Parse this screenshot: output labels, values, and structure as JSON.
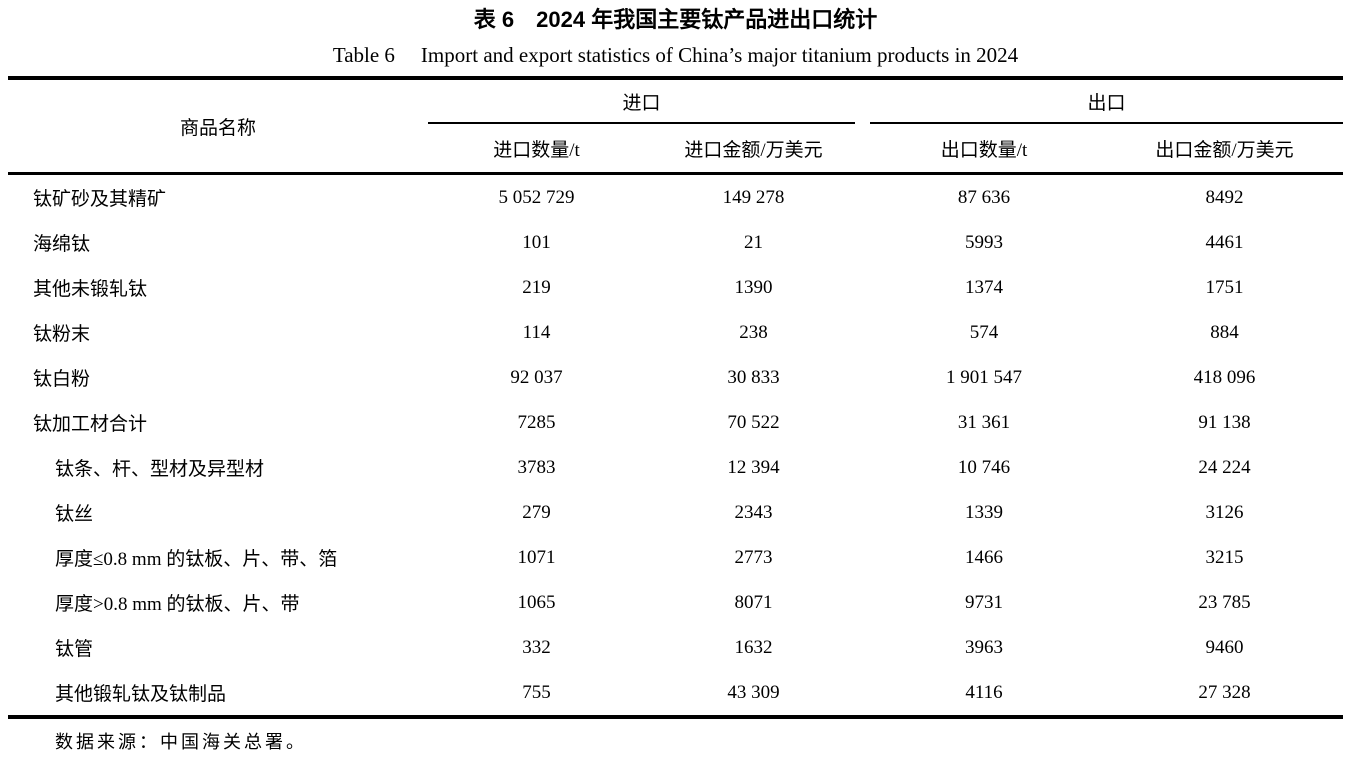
{
  "page": {
    "background_color": "#ffffff",
    "text_color": "#000000"
  },
  "title": {
    "zh_label": "表 6",
    "zh_text": "2024 年我国主要钛产品进出口统计",
    "en_label": "Table 6",
    "en_text": "Import and export statistics of China’s major titanium products in 2024"
  },
  "table": {
    "product_header": "商品名称",
    "groups": [
      {
        "label": "进口"
      },
      {
        "label": "出口"
      }
    ],
    "columns": [
      "进口数量/t",
      "进口金额/万美元",
      "出口数量/t",
      "出口金额/万美元"
    ],
    "rows": [
      {
        "name": "钛矿砂及其精矿",
        "indent": false,
        "values": [
          "5 052 729",
          "149 278",
          "87 636",
          "8492"
        ]
      },
      {
        "name": "海绵钛",
        "indent": false,
        "values": [
          "101",
          "21",
          "5993",
          "4461"
        ]
      },
      {
        "name": "其他未锻轧钛",
        "indent": false,
        "values": [
          "219",
          "1390",
          "1374",
          "1751"
        ]
      },
      {
        "name": "钛粉末",
        "indent": false,
        "values": [
          "114",
          "238",
          "574",
          "884"
        ]
      },
      {
        "name": "钛白粉",
        "indent": false,
        "values": [
          "92 037",
          "30 833",
          "1 901 547",
          "418 096"
        ]
      },
      {
        "name": "钛加工材合计",
        "indent": false,
        "values": [
          "7285",
          "70 522",
          "31 361",
          "91 138"
        ]
      },
      {
        "name": "钛条、杆、型材及异型材",
        "indent": true,
        "values": [
          "3783",
          "12 394",
          "10 746",
          "24 224"
        ]
      },
      {
        "name": "钛丝",
        "indent": true,
        "values": [
          "279",
          "2343",
          "1339",
          "3126"
        ]
      },
      {
        "name": "厚度≤0.8 mm 的钛板、片、带、箔",
        "indent": true,
        "values": [
          "1071",
          "2773",
          "1466",
          "3215"
        ]
      },
      {
        "name": "厚度>0.8 mm 的钛板、片、带",
        "indent": true,
        "values": [
          "1065",
          "8071",
          "9731",
          "23 785"
        ]
      },
      {
        "name": "钛管",
        "indent": true,
        "values": [
          "332",
          "1632",
          "3963",
          "9460"
        ]
      },
      {
        "name": "其他锻轧钛及钛制品",
        "indent": true,
        "values": [
          "755",
          "43 309",
          "4116",
          "27 328"
        ]
      }
    ],
    "source_note": "数据来源：中国海关总署。"
  }
}
